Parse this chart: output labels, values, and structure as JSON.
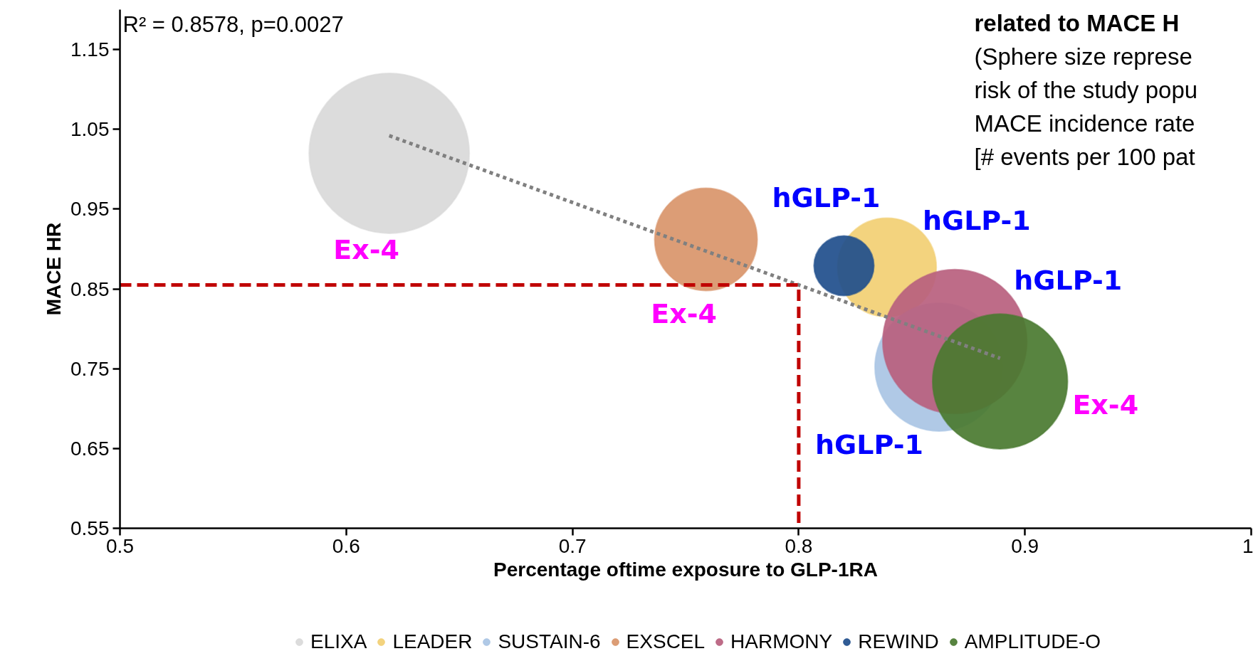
{
  "chart_data": {
    "type": "bubble",
    "xlabel": "Percentage oftime exposure to GLP-1RA",
    "ylabel": "MACE HR",
    "xlim": [
      0.5,
      1.0
    ],
    "ylim": [
      0.55,
      1.2
    ],
    "xticks": [
      0.5,
      0.6,
      0.7,
      0.8,
      0.9,
      1
    ],
    "yticks": [
      0.55,
      0.65,
      0.75,
      0.85,
      0.95,
      1.05,
      1.15
    ],
    "grid": false,
    "legend": "bottom",
    "series": [
      {
        "name": "ELIXA",
        "color": "#d9d9d9",
        "x": [
          0.619
        ],
        "values": [
          1.02
        ],
        "sizes": [
          1
        ],
        "value_labels": [
          "Ex-4"
        ]
      },
      {
        "name": "LEADER",
        "color": "#f2cf73",
        "x": [
          0.839
        ],
        "values": [
          0.877
        ],
        "sizes": [
          0.38
        ],
        "value_labels": [
          "hGLP-1"
        ]
      },
      {
        "name": "SUSTAIN-6",
        "color": "#a9c4e4",
        "x": [
          0.862
        ],
        "values": [
          0.752
        ],
        "sizes": [
          0.64
        ],
        "value_labels": [
          "hGLP-1"
        ]
      },
      {
        "name": "EXSCEL",
        "color": "#d9956a",
        "x": [
          0.759
        ],
        "values": [
          0.912
        ],
        "sizes": [
          0.41
        ],
        "value_labels": [
          "Ex-4"
        ]
      },
      {
        "name": "HARMONY",
        "color": "#b8607e",
        "x": [
          0.869
        ],
        "values": [
          0.784
        ],
        "sizes": [
          0.81
        ],
        "value_labels": [
          "hGLP-1"
        ]
      },
      {
        "name": "REWIND",
        "color": "#1f4e8c",
        "x": [
          0.82
        ],
        "values": [
          0.879
        ],
        "sizes": [
          0.14
        ],
        "value_labels": [
          "hGLP-1"
        ]
      },
      {
        "name": "AMPLITUDE-O",
        "color": "#4a7a30",
        "x": [
          0.889
        ],
        "values": [
          0.734
        ],
        "sizes": [
          0.71
        ],
        "value_labels": [
          "Ex-4"
        ]
      },
      {
        "type": "line",
        "color": "#808080",
        "line_style": "dotted",
        "x": [
          0.619,
          0.889
        ],
        "values": [
          1.042,
          0.763
        ]
      },
      {
        "type": "line",
        "color": "#c00000",
        "line_style": "dashed",
        "x": [
          0.5,
          0.8,
          0.8
        ],
        "values": [
          0.855,
          0.855,
          0.55
        ]
      }
    ],
    "annotations": [
      "R² = 0.8578, p=0.0027",
      "related to MACE H",
      "(Sphere size represe",
      "risk of the study popu",
      "MACE incidence rate",
      "[# events per 100 pat"
    ]
  }
}
